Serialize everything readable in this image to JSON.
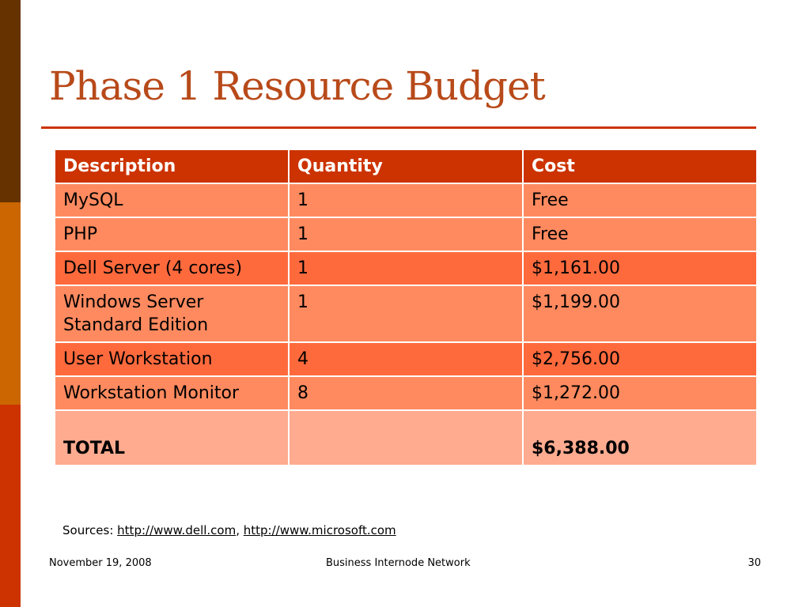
{
  "slide": {
    "title": "Phase 1 Resource Budget",
    "colors": {
      "title": "#b84a1a",
      "header": "#cc3300",
      "row_light": "#ff8a5f",
      "row_dark": "#ff6a3d",
      "total": "#ffab90"
    }
  },
  "table": {
    "headers": [
      "Description",
      "Quantity",
      "Cost"
    ],
    "rows": [
      [
        "MySQL",
        "1",
        "Free"
      ],
      [
        "PHP",
        "1",
        "Free"
      ],
      [
        "Dell Server (4 cores)",
        "1",
        "$1,161.00"
      ],
      [
        "Windows Server Standard Edition",
        "1",
        "$1,199.00"
      ],
      [
        "User Workstation",
        "4",
        "$2,756.00"
      ],
      [
        "Workstation Monitor",
        "8",
        "$1,272.00"
      ]
    ],
    "total": {
      "label": "TOTAL",
      "quantity": "",
      "cost": "$6,388.00"
    }
  },
  "sources": {
    "prefix": "Sources:",
    "links": [
      "http://www.dell.com",
      "http://www.microsoft.com"
    ]
  },
  "footer": {
    "date": "November 19, 2008",
    "center": "Business Internode Network",
    "page": "30"
  }
}
